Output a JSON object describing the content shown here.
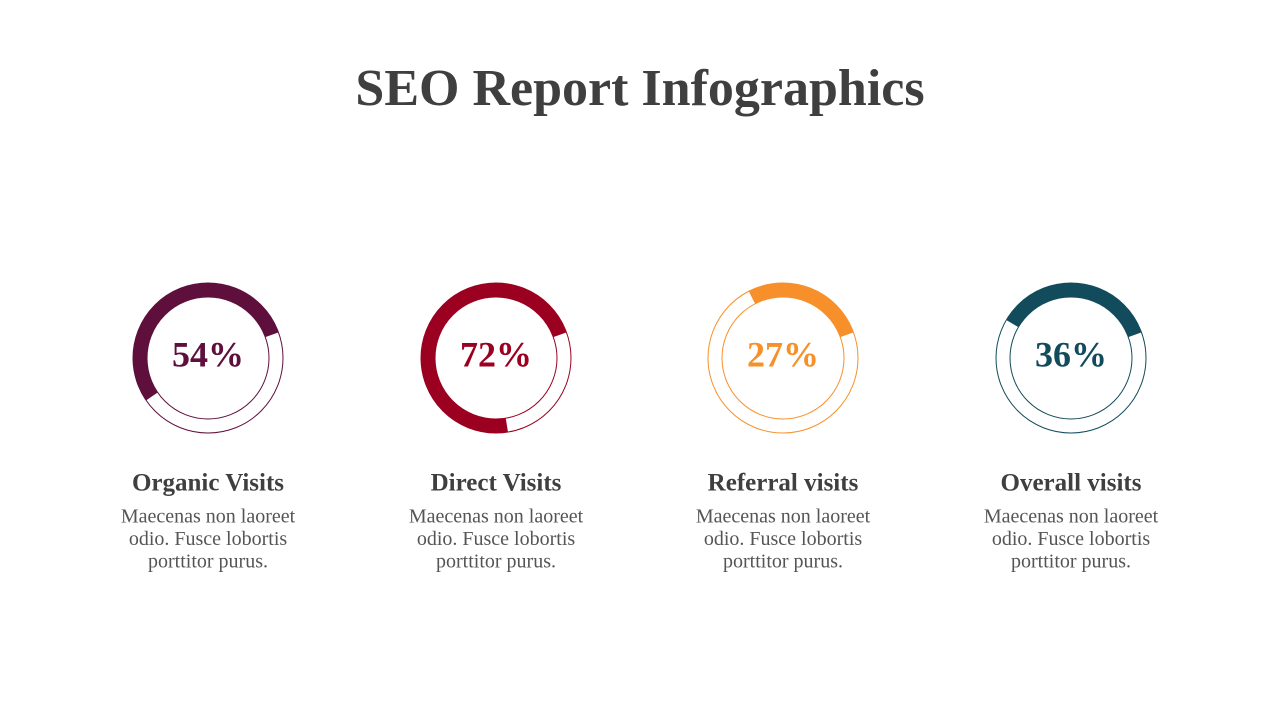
{
  "title": "SEO Report Infographics",
  "items": [
    {
      "value": 54,
      "value_label": "54%",
      "label": "Organic Visits",
      "lines": [
        "Maecenas non laoreet",
        "odio. Fusce lobortis",
        "porttitor purus."
      ],
      "color": "#5e0f3c"
    },
    {
      "value": 72,
      "value_label": "72%",
      "label": "Direct Visits",
      "lines": [
        "Maecenas non laoreet",
        "odio. Fusce lobortis",
        "porttitor purus."
      ],
      "color": "#9b0020"
    },
    {
      "value": 27,
      "value_label": "27%",
      "label": "Referral visits",
      "lines": [
        "Maecenas non laoreet",
        "odio. Fusce lobortis",
        "porttitor purus."
      ],
      "color": "#f7902a"
    },
    {
      "value": 36,
      "value_label": "36%",
      "label": "Overall visits",
      "lines": [
        "Maecenas non laoreet",
        "odio. Fusce lobortis",
        "porttitor purus."
      ],
      "color": "#124b5b"
    }
  ]
}
